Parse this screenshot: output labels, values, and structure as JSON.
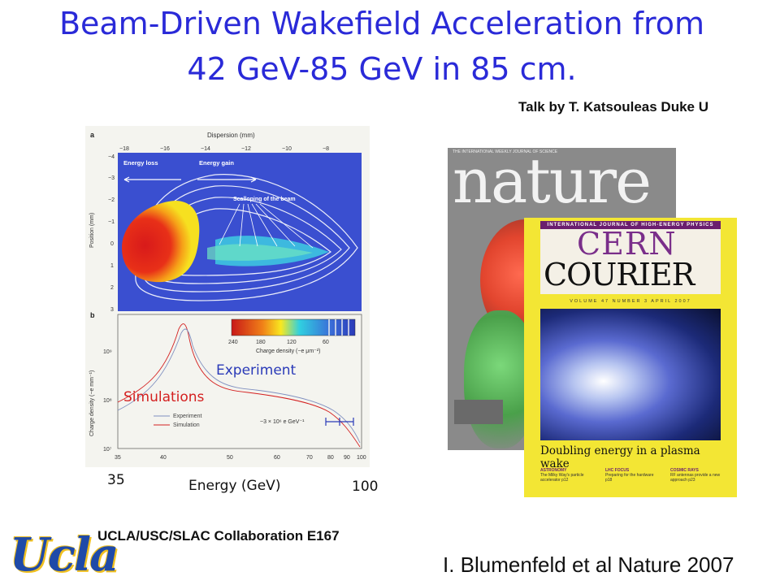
{
  "title": {
    "line1": "Beam-Driven Wakefield Acceleration from",
    "line2": "42 GeV-85 GeV in 85 cm."
  },
  "talk_credit": "Talk by T. Katsouleas Duke U",
  "figure": {
    "panel_a": {
      "letter": "a",
      "top_axis_label": "Dispersion (mm)",
      "top_ticks": [
        "−18",
        "−16",
        "−14",
        "−12",
        "−10",
        "−8"
      ],
      "y_axis_label": "Position (mm)",
      "y_ticks": [
        "−4",
        "−3",
        "−2",
        "−1",
        "0",
        "1",
        "2",
        "3"
      ],
      "energy_loss": "Energy loss",
      "energy_gain": "Energy gain",
      "scalloping": "Scalloping of the beam"
    },
    "panel_b": {
      "letter": "b",
      "y_axis_label": "Charge density (−e mm⁻¹)",
      "y_ticks": [
        "10⁹",
        "10⁸",
        "10⁷"
      ],
      "x_ticks": [
        "35",
        "40",
        "50",
        "60",
        "70",
        "80",
        "90",
        "100"
      ],
      "colorbar_ticks": [
        "240",
        "180",
        "120",
        "60"
      ],
      "colorbar_label": "Charge density (−e μm⁻²)",
      "legend_experiment": "Experiment",
      "legend_simulation": "Simulation",
      "error_bar_label": "~3 × 10⁶ e GeV⁻¹"
    },
    "overlay_experiment": "Experiment",
    "overlay_simulations": "Simulations",
    "energy_min": "35",
    "energy_max": "100",
    "energy_axis": "Energy (GeV)"
  },
  "covers": {
    "nature": {
      "masthead": "nature",
      "top_line": "THE INTERNATIONAL WEEKLY JOURNAL OF SCIENCE"
    },
    "cern": {
      "top_band": "International Journal of High-Energy Physics",
      "title1": "CERN",
      "title2": "COURIER",
      "volume": "Volume 47   Number 3   April 2007",
      "headline": "Doubling energy in a plasma wake",
      "col1_head": "ASTRONOMY",
      "col1_text": "The Milky Way's particle accelerator p12",
      "col2_head": "LHC FOCUS",
      "col2_text": "Preparing for the hardware p18",
      "col3_head": "COSMIC RAYS",
      "col3_text": "RF antennas provide a new approach p23"
    }
  },
  "collaboration": "UCLA/USC/SLAC Collaboration E167",
  "citation": "I. Blumenfeld et al Nature 2007",
  "logo": "Ucla",
  "colors": {
    "title": "#2a2ad8",
    "plot_background": "#3a4fd0",
    "cern_border": "#f3e634",
    "cern_band": "#6b1e6e",
    "nature_background": "#8a8a8a"
  }
}
